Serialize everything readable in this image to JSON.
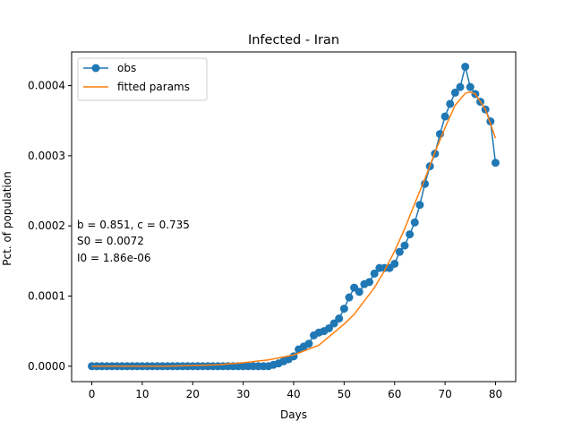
{
  "chart_data": {
    "type": "line",
    "title": "Infected - Iran",
    "xlabel": "Days",
    "ylabel": "Pct. of population",
    "xlim": [
      -4,
      84
    ],
    "ylim": [
      -2.2e-05,
      0.000448
    ],
    "xticks": [
      0,
      10,
      20,
      30,
      40,
      50,
      60,
      70,
      80
    ],
    "xtick_labels": [
      "0",
      "10",
      "20",
      "30",
      "40",
      "50",
      "60",
      "70",
      "80"
    ],
    "yticks": [
      0,
      0.0001,
      0.0002,
      0.0003,
      0.0004
    ],
    "ytick_labels": [
      "0.0000",
      "0.0001",
      "0.0002",
      "0.0003",
      "0.0004"
    ],
    "grid": false,
    "legend": "top-left",
    "annotation": {
      "line1": "b = 0.851, c = 0.735",
      "line2": "S0 = 0.0072",
      "line3": "I0 = 1.86e-06"
    },
    "series": [
      {
        "name": "obs",
        "color": "#1f77b4",
        "marker": "circle",
        "x": [
          0,
          1,
          2,
          3,
          4,
          5,
          6,
          7,
          8,
          9,
          10,
          11,
          12,
          13,
          14,
          15,
          16,
          17,
          18,
          19,
          20,
          21,
          22,
          23,
          24,
          25,
          26,
          27,
          28,
          29,
          30,
          31,
          32,
          33,
          34,
          35,
          36,
          37,
          38,
          39,
          40,
          41,
          42,
          43,
          44,
          45,
          46,
          47,
          48,
          49,
          50,
          51,
          52,
          53,
          54,
          55,
          56,
          57,
          58,
          59,
          60,
          61,
          62,
          63,
          64,
          65,
          66,
          67,
          68,
          69,
          70,
          71,
          72,
          73,
          74,
          75,
          76,
          77,
          78,
          79,
          80
        ],
        "y": [
          0,
          0,
          0,
          0,
          0,
          0,
          0,
          0,
          0,
          0,
          0,
          0,
          0,
          0,
          0,
          0,
          0,
          0,
          0,
          0,
          0,
          0,
          0,
          0,
          0,
          0,
          0,
          0,
          0,
          0,
          0,
          0,
          0,
          0,
          0,
          0,
          2e-06,
          4e-06,
          7e-06,
          1e-05,
          1.4e-05,
          2.4e-05,
          2.8e-05,
          3.2e-05,
          4.4e-05,
          4.8e-05,
          5e-05,
          5.4e-05,
          6.1e-05,
          6.8e-05,
          8.2e-05,
          9.8e-05,
          0.000112,
          0.000106,
          0.000117,
          0.00012,
          0.000132,
          0.00014,
          0.00014,
          0.00014,
          0.000146,
          0.000163,
          0.000172,
          0.000188,
          0.000205,
          0.00023,
          0.00026,
          0.000285,
          0.000303,
          0.000331,
          0.000356,
          0.000374,
          0.00039,
          0.000398,
          0.000427,
          0.000398,
          0.000388,
          0.000377,
          0.000366,
          0.000349,
          0.00029
        ]
      },
      {
        "name": "fitted params",
        "color": "#ff7f0e",
        "x": [
          0,
          5,
          10,
          15,
          20,
          25,
          30,
          35,
          40,
          45,
          50,
          52,
          54,
          56,
          58,
          60,
          62,
          64,
          66,
          68,
          70,
          72,
          74,
          75,
          76,
          78,
          80
        ],
        "y": [
          0,
          0,
          0,
          0,
          1e-06,
          2e-06,
          5e-06,
          9e-06,
          1.6e-05,
          3e-05,
          6e-05,
          7.4e-05,
          9.3e-05,
          0.000112,
          0.000136,
          0.000164,
          0.000196,
          0.000232,
          0.000267,
          0.000305,
          0.00034,
          0.000372,
          0.000389,
          0.000391,
          0.000388,
          0.000366,
          0.000325
        ]
      }
    ]
  }
}
